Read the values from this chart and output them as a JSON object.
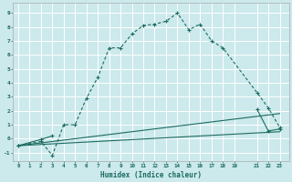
{
  "xlabel": "Humidex (Indice chaleur)",
  "bg_color": "#cce9ec",
  "grid_color": "#b0d8dc",
  "line_color": "#1a6b60",
  "xlim": [
    -0.5,
    23.8
  ],
  "ylim": [
    -1.6,
    9.7
  ],
  "yticks": [
    -1,
    0,
    1,
    2,
    3,
    4,
    5,
    6,
    7,
    8,
    9
  ],
  "xticks": [
    0,
    1,
    2,
    3,
    4,
    5,
    6,
    7,
    8,
    9,
    10,
    11,
    12,
    13,
    14,
    15,
    16,
    17,
    18,
    19,
    21,
    22,
    23
  ],
  "curve1_x": [
    0,
    2,
    3,
    4,
    5,
    6,
    7,
    8,
    9,
    10,
    11,
    12,
    13,
    14,
    15,
    16,
    17,
    18,
    21,
    22,
    23
  ],
  "curve1_y": [
    -0.5,
    -0.2,
    -1.2,
    1.0,
    1.0,
    2.9,
    4.4,
    6.5,
    6.5,
    7.5,
    8.1,
    8.2,
    8.4,
    9.0,
    7.8,
    8.2,
    7.0,
    6.5,
    3.3,
    2.2,
    0.8
  ],
  "curve2_x": [
    0,
    2,
    3,
    21,
    22,
    23
  ],
  "curve2_y": [
    -0.5,
    -0.05,
    0.2,
    2.1,
    0.55,
    0.7
  ],
  "line3_x": [
    0,
    23
  ],
  "line3_y": [
    -0.5,
    1.8
  ],
  "line4_x": [
    0,
    23
  ],
  "line4_y": [
    -0.5,
    0.5
  ]
}
